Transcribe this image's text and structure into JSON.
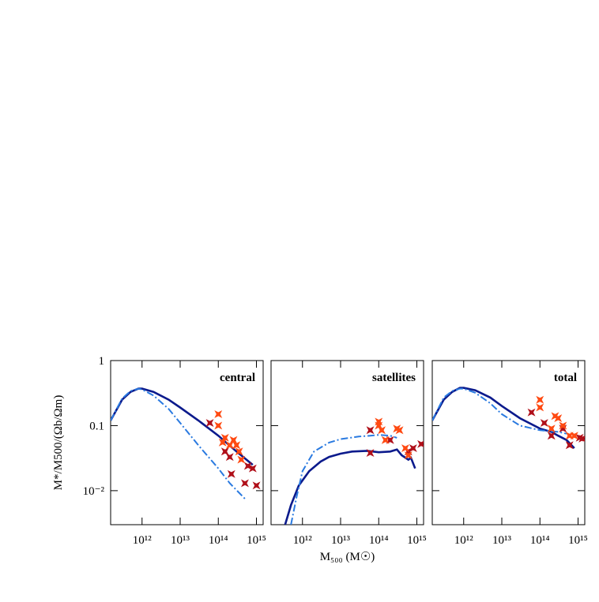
{
  "chart_data": [
    {
      "type": "line",
      "label": "central",
      "ylabel": "M*/M500/(Ωb/Ωm)",
      "xlim": [
        150000000000.0,
        1500000000000000.0
      ],
      "ylim": [
        0.003,
        1
      ],
      "log": true,
      "xticks": [
        {
          "value": 1000000000000.0,
          "label": "10¹²"
        },
        {
          "value": 10000000000000.0,
          "label": "10¹³"
        },
        {
          "value": 100000000000000.0,
          "label": "10¹⁴"
        },
        {
          "value": 1000000000000000.0,
          "label": "10¹⁵"
        }
      ],
      "yticks": [
        1,
        0.1,
        {
          "value": 0.01,
          "label": "10⁻²"
        }
      ],
      "series": [
        {
          "type": "line",
          "color": "#0b1a8c",
          "dash": false,
          "x": [
            150000000000.0,
            300000000000.0,
            500000000000.0,
            800000000000.0,
            1000000000000.0,
            2000000000000.0,
            5000000000000.0,
            10000000000000.0,
            30000000000000.0,
            100000000000000.0,
            300000000000000.0,
            800000000000000.0
          ],
          "values": [
            0.12,
            0.25,
            0.33,
            0.37,
            0.37,
            0.33,
            0.25,
            0.19,
            0.12,
            0.07,
            0.04,
            0.025
          ]
        },
        {
          "type": "line",
          "color": "#2a7ae0",
          "dash": true,
          "x": [
            150000000000.0,
            300000000000.0,
            500000000000.0,
            800000000000.0,
            1000000000000.0,
            2000000000000.0,
            5000000000000.0,
            10000000000000.0,
            30000000000000.0,
            100000000000000.0,
            200000000000000.0,
            500000000000000.0
          ],
          "values": [
            0.12,
            0.26,
            0.34,
            0.37,
            0.36,
            0.29,
            0.18,
            0.11,
            0.05,
            0.022,
            0.013,
            0.0075
          ]
        },
        {
          "type": "scatter",
          "color": "#b0101a",
          "x": [
            60000000000000.0,
            150000000000000.0,
            200000000000000.0,
            220000000000000.0,
            500000000000000.0,
            800000000000000.0,
            1000000000000000.0,
            600000000000000.0
          ],
          "values": [
            0.11,
            0.04,
            0.033,
            0.018,
            0.013,
            0.022,
            0.012,
            0.024
          ]
        },
        {
          "type": "scatter",
          "color": "#ff4a12",
          "x": [
            100000000000000.0,
            100000000000000.0,
            150000000000000.0,
            250000000000000.0,
            300000000000000.0,
            350000000000000.0,
            400000000000000.0,
            200000000000000.0,
            130000000000000.0
          ],
          "values": [
            0.15,
            0.1,
            0.065,
            0.06,
            0.05,
            0.04,
            0.03,
            0.05,
            0.055
          ]
        }
      ]
    },
    {
      "type": "line",
      "label": "satellites",
      "xlabel": "M₅₀₀ (M☉)",
      "xlim": [
        150000000000.0,
        1500000000000000.0
      ],
      "ylim": [
        0.003,
        1
      ],
      "log": true,
      "xticks": [
        {
          "value": 1000000000000.0,
          "label": "10¹²"
        },
        {
          "value": 10000000000000.0,
          "label": "10¹³"
        },
        {
          "value": 100000000000000.0,
          "label": "10¹⁴"
        },
        {
          "value": 1000000000000000.0,
          "label": "10¹⁵"
        }
      ],
      "series": [
        {
          "type": "line",
          "color": "#0b1a8c",
          "dash": false,
          "x": [
            350000000000.0,
            500000000000.0,
            800000000000.0,
            1500000000000.0,
            3000000000000.0,
            5000000000000.0,
            10000000000000.0,
            20000000000000.0,
            50000000000000.0,
            100000000000000.0,
            200000000000000.0,
            300000000000000.0,
            400000000000000.0,
            600000000000000.0,
            700000000000000.0,
            900000000000000.0
          ],
          "values": [
            0.003,
            0.006,
            0.012,
            0.02,
            0.028,
            0.033,
            0.037,
            0.04,
            0.041,
            0.039,
            0.04,
            0.043,
            0.035,
            0.03,
            0.032,
            0.022
          ]
        },
        {
          "type": "line",
          "color": "#2a7ae0",
          "dash": true,
          "x": [
            500000000000.0,
            700000000000.0,
            1000000000000.0,
            2000000000000.0,
            5000000000000.0,
            10000000000000.0,
            30000000000000.0,
            60000000000000.0,
            100000000000000.0,
            200000000000000.0,
            300000000000000.0
          ],
          "values": [
            0.003,
            0.008,
            0.02,
            0.04,
            0.055,
            0.062,
            0.068,
            0.07,
            0.072,
            0.07,
            0.065
          ]
        },
        {
          "type": "scatter",
          "color": "#b0101a",
          "x": [
            60000000000000.0,
            60000000000000.0,
            200000000000000.0,
            600000000000000.0,
            800000000000000.0,
            1300000000000000.0
          ],
          "values": [
            0.038,
            0.085,
            0.06,
            0.04,
            0.045,
            0.052
          ]
        },
        {
          "type": "scatter",
          "color": "#ff4a12",
          "x": [
            100000000000000.0,
            100000000000000.0,
            120000000000000.0,
            300000000000000.0,
            350000000000000.0,
            150000000000000.0,
            500000000000000.0,
            600000000000000.0
          ],
          "values": [
            0.115,
            0.1,
            0.085,
            0.09,
            0.085,
            0.06,
            0.045,
            0.035
          ]
        }
      ]
    },
    {
      "type": "line",
      "label": "total",
      "xlim": [
        150000000000.0,
        1500000000000000.0
      ],
      "ylim": [
        0.003,
        1
      ],
      "log": true,
      "xticks": [
        {
          "value": 1000000000000.0,
          "label": "10¹²"
        },
        {
          "value": 10000000000000.0,
          "label": "10¹³"
        },
        {
          "value": 100000000000000.0,
          "label": "10¹⁴"
        },
        {
          "value": 1000000000000000.0,
          "label": "10¹⁵"
        }
      ],
      "series": [
        {
          "type": "line",
          "color": "#0b1a8c",
          "dash": false,
          "x": [
            150000000000.0,
            300000000000.0,
            500000000000.0,
            800000000000.0,
            1000000000000.0,
            2000000000000.0,
            5000000000000.0,
            10000000000000.0,
            30000000000000.0,
            100000000000000.0,
            200000000000000.0,
            300000000000000.0,
            500000000000000.0,
            800000000000000.0
          ],
          "values": [
            0.12,
            0.25,
            0.33,
            0.38,
            0.38,
            0.35,
            0.27,
            0.2,
            0.13,
            0.09,
            0.08,
            0.07,
            0.06,
            0.045
          ]
        },
        {
          "type": "line",
          "color": "#2a7ae0",
          "dash": true,
          "x": [
            150000000000.0,
            300000000000.0,
            500000000000.0,
            800000000000.0,
            1000000000000.0,
            2000000000000.0,
            5000000000000.0,
            10000000000000.0,
            30000000000000.0,
            100000000000000.0,
            300000000000000.0,
            500000000000000.0
          ],
          "values": [
            0.12,
            0.27,
            0.34,
            0.37,
            0.37,
            0.32,
            0.22,
            0.15,
            0.1,
            0.085,
            0.08,
            0.075
          ]
        },
        {
          "type": "scatter",
          "color": "#b0101a",
          "x": [
            60000000000000.0,
            130000000000000.0,
            200000000000000.0,
            400000000000000.0,
            600000000000000.0,
            1100000000000000.0,
            1300000000000000.0
          ],
          "values": [
            0.16,
            0.11,
            0.07,
            0.09,
            0.05,
            0.065,
            0.063
          ]
        },
        {
          "type": "scatter",
          "color": "#ff4a12",
          "x": [
            100000000000000.0,
            100000000000000.0,
            250000000000000.0,
            300000000000000.0,
            400000000000000.0,
            600000000000000.0,
            200000000000000.0,
            800000000000000.0
          ],
          "values": [
            0.25,
            0.19,
            0.14,
            0.13,
            0.1,
            0.07,
            0.09,
            0.07
          ]
        }
      ]
    }
  ]
}
